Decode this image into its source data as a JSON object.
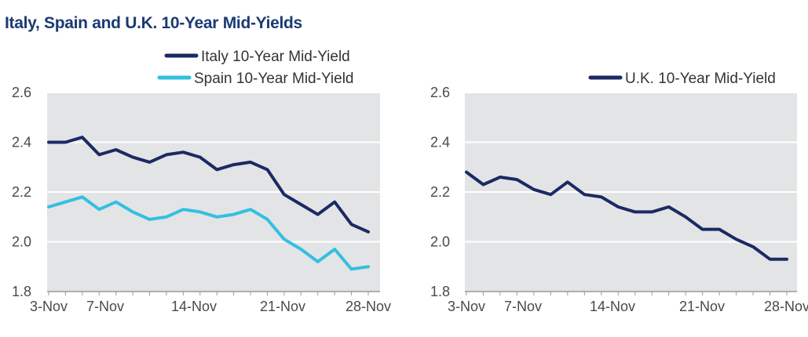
{
  "title": "Italy, Spain and U.K. 10-Year Mid-Yields",
  "colors": {
    "italy": "#1b2a63",
    "spain": "#33c0e0",
    "uk": "#1b2a63",
    "plot_bg": "#e3e4e6",
    "grid": "#ffffff"
  },
  "chart_data": [
    {
      "type": "line",
      "ylim": [
        1.8,
        2.6
      ],
      "yticks": [
        "2.6",
        "2.4",
        "2.2",
        "2.0",
        "1.8"
      ],
      "xtick_labels": [
        "3-Nov",
        "7-Nov",
        "14-Nov",
        "21-Nov",
        "28-Nov"
      ],
      "legend_position": "top-right",
      "series": [
        {
          "name": "Italy 10-Year Mid-Yield",
          "values": [
            2.4,
            2.4,
            2.42,
            2.35,
            2.37,
            2.34,
            2.32,
            2.35,
            2.36,
            2.34,
            2.29,
            2.31,
            2.32,
            2.29,
            2.19,
            2.15,
            2.11,
            2.16,
            2.07,
            2.04
          ]
        },
        {
          "name": "Spain 10-Year Mid-Yield",
          "values": [
            2.14,
            2.16,
            2.18,
            2.13,
            2.16,
            2.12,
            2.09,
            2.1,
            2.13,
            2.12,
            2.1,
            2.11,
            2.13,
            2.09,
            2.01,
            1.97,
            1.92,
            1.97,
            1.89,
            1.9
          ]
        }
      ]
    },
    {
      "type": "line",
      "ylim": [
        1.8,
        2.6
      ],
      "yticks": [
        "2.6",
        "2.4",
        "2.2",
        "2.0",
        "1.8"
      ],
      "xtick_labels": [
        "3-Nov",
        "7-Nov",
        "14-Nov",
        "21-Nov",
        "28-Nov"
      ],
      "legend_position": "top-right",
      "series": [
        {
          "name": "U.K. 10-Year Mid-Yield",
          "values": [
            2.28,
            2.23,
            2.26,
            2.25,
            2.21,
            2.19,
            2.24,
            2.19,
            2.18,
            2.14,
            2.12,
            2.12,
            2.14,
            2.1,
            2.05,
            2.05,
            2.01,
            1.98,
            1.93,
            1.93
          ]
        }
      ]
    }
  ]
}
